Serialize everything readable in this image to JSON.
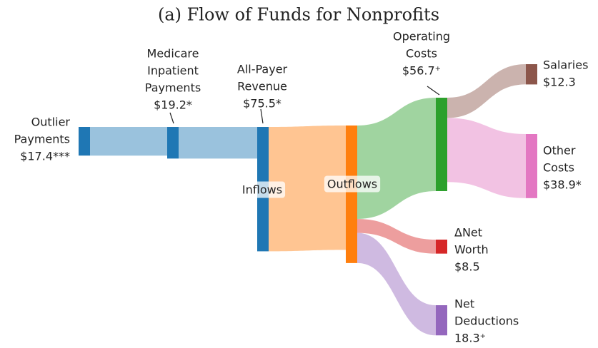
{
  "chart_data": {
    "type": "sankey",
    "title": "(a) Flow of Funds for Nonprofits",
    "nodes": [
      {
        "name": [
          "Outlier",
          "Payments"
        ],
        "value_label": "$17.4***",
        "value": 17.4,
        "color": "#1f77b4"
      },
      {
        "name": [
          "Medicare",
          "Inpatient",
          "Payments"
        ],
        "value_label": "$19.2*",
        "value": 19.2,
        "color": "#1f77b4"
      },
      {
        "name": [
          "All-Payer",
          "Revenue"
        ],
        "value_label": "$75.5*",
        "value": 75.5,
        "tag": "Inflows",
        "color": "#1f77b4"
      },
      {
        "tag": "Outflows",
        "value": 83.5,
        "color": "#ff7f0e"
      },
      {
        "name": [
          "Operating",
          "Costs"
        ],
        "value_label": "$56.7⁺",
        "value": 56.7,
        "color": "#2ca02c"
      },
      {
        "name": [
          "Salaries"
        ],
        "value_label": "$12.3",
        "value": 12.3,
        "color": "#8c564b"
      },
      {
        "name": [
          "Other",
          "Costs"
        ],
        "value_label": "$38.9*",
        "value": 38.9,
        "color": "#e377c2"
      },
      {
        "name": [
          "ΔNet",
          "Worth"
        ],
        "value_label": "$8.5",
        "value": 8.5,
        "color": "#d62728"
      },
      {
        "name": [
          "Net",
          "Deductions"
        ],
        "value_label": "18.3⁺",
        "value": 18.3,
        "color": "#9467bd"
      }
    ],
    "links": [
      {
        "source": 0,
        "target": 1
      },
      {
        "source": 1,
        "target": 2
      },
      {
        "source": 2,
        "target": 3
      },
      {
        "source": 3,
        "target": 4
      },
      {
        "source": 3,
        "target": 7
      },
      {
        "source": 3,
        "target": 8
      },
      {
        "source": 4,
        "target": 5
      },
      {
        "source": 4,
        "target": 6
      }
    ]
  }
}
